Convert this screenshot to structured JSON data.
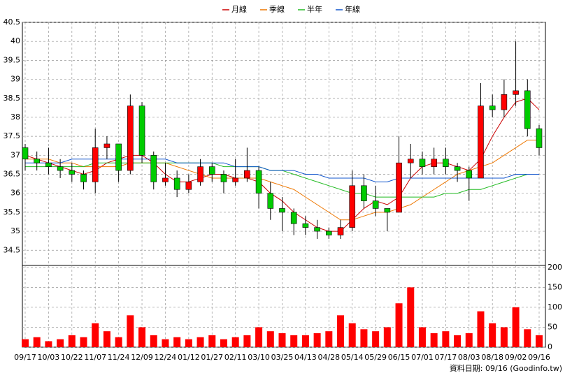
{
  "chart_data": {
    "type": "candlestick",
    "categories": [
      "09/17",
      null,
      "10/03",
      null,
      "10/22",
      null,
      "11/07",
      null,
      "11/24",
      null,
      "12/09",
      null,
      "12/24",
      null,
      "01/12",
      null,
      "01/27",
      null,
      "02/11",
      null,
      "03/10",
      null,
      "03/25",
      null,
      "04/13",
      null,
      "04/28",
      null,
      "05/14",
      null,
      "05/29",
      null,
      "06/15",
      null,
      "07/01",
      null,
      "07/17",
      null,
      "08/03",
      null,
      "08/18",
      null,
      "09/02",
      null,
      "09/16"
    ],
    "ohlc": [
      [
        37.2,
        37.3,
        36.6,
        36.9
      ],
      [
        36.9,
        37.1,
        36.6,
        36.8
      ],
      [
        36.8,
        37.2,
        36.5,
        36.7
      ],
      [
        36.7,
        36.9,
        36.4,
        36.6
      ],
      [
        36.6,
        36.8,
        36.3,
        36.5
      ],
      [
        36.5,
        36.6,
        36.1,
        36.3
      ],
      [
        36.3,
        37.7,
        36.0,
        37.2
      ],
      [
        37.2,
        37.5,
        36.9,
        37.3
      ],
      [
        37.3,
        37.3,
        36.3,
        36.6
      ],
      [
        36.6,
        38.6,
        36.5,
        38.3
      ],
      [
        38.3,
        38.4,
        36.8,
        37.0
      ],
      [
        37.0,
        37.1,
        36.1,
        36.3
      ],
      [
        36.3,
        36.8,
        36.2,
        36.4
      ],
      [
        36.4,
        36.6,
        35.9,
        36.1
      ],
      [
        36.1,
        36.5,
        36.0,
        36.3
      ],
      [
        36.3,
        36.9,
        36.2,
        36.7
      ],
      [
        36.7,
        36.8,
        36.3,
        36.5
      ],
      [
        36.5,
        36.6,
        36.0,
        36.3
      ],
      [
        36.3,
        36.9,
        36.2,
        36.4
      ],
      [
        36.4,
        37.2,
        36.3,
        36.6
      ],
      [
        36.6,
        36.7,
        35.6,
        36.0
      ],
      [
        36.0,
        36.3,
        35.3,
        35.6
      ],
      [
        35.6,
        35.9,
        35.0,
        35.5
      ],
      [
        35.5,
        35.6,
        34.9,
        35.2
      ],
      [
        35.2,
        35.4,
        34.9,
        35.1
      ],
      [
        35.1,
        35.3,
        34.8,
        35.0
      ],
      [
        35.0,
        35.1,
        34.8,
        34.9
      ],
      [
        34.9,
        35.3,
        34.8,
        35.1
      ],
      [
        35.1,
        36.6,
        35.0,
        36.2
      ],
      [
        36.2,
        36.5,
        35.6,
        35.8
      ],
      [
        35.8,
        36.2,
        35.4,
        35.6
      ],
      [
        35.6,
        35.6,
        35.0,
        35.5
      ],
      [
        35.5,
        37.5,
        35.5,
        36.8
      ],
      [
        36.8,
        37.3,
        36.4,
        36.9
      ],
      [
        36.9,
        37.1,
        36.5,
        36.7
      ],
      [
        36.7,
        37.2,
        36.5,
        36.9
      ],
      [
        36.9,
        37.2,
        36.5,
        36.7
      ],
      [
        36.7,
        36.8,
        36.3,
        36.6
      ],
      [
        36.6,
        36.7,
        35.8,
        36.4
      ],
      [
        36.4,
        38.9,
        36.4,
        38.3
      ],
      [
        38.3,
        38.6,
        38.0,
        38.2
      ],
      [
        38.2,
        39.0,
        38.0,
        38.6
      ],
      [
        38.6,
        40.0,
        38.3,
        38.7
      ],
      [
        38.7,
        39.0,
        37.5,
        37.7
      ],
      [
        37.7,
        37.8,
        37.0,
        37.2
      ]
    ],
    "volume": [
      20,
      25,
      15,
      20,
      30,
      25,
      60,
      40,
      25,
      80,
      50,
      30,
      20,
      25,
      20,
      25,
      30,
      20,
      25,
      30,
      50,
      40,
      35,
      30,
      30,
      35,
      40,
      80,
      60,
      45,
      40,
      50,
      110,
      150,
      50,
      35,
      40,
      30,
      35,
      90,
      60,
      50,
      100,
      45,
      30
    ],
    "up_color": "#ff0000",
    "down_color": "#00cc00",
    "volume_color": "#ff0000",
    "series": [
      {
        "name": "月線",
        "color": "#cc0000",
        "values": [
          37.0,
          36.9,
          36.8,
          36.7,
          36.6,
          36.5,
          36.6,
          36.8,
          36.9,
          37.0,
          37.0,
          36.8,
          36.5,
          36.3,
          36.3,
          36.4,
          36.5,
          36.5,
          36.4,
          36.4,
          36.3,
          36.0,
          35.8,
          35.5,
          35.3,
          35.1,
          35.0,
          35.0,
          35.3,
          35.6,
          35.8,
          35.7,
          35.9,
          36.4,
          36.7,
          36.8,
          36.8,
          36.7,
          36.6,
          36.9,
          37.5,
          38.0,
          38.4,
          38.5,
          38.2
        ]
      },
      {
        "name": "季線",
        "color": "#ee7700",
        "values": [
          36.9,
          36.9,
          36.9,
          36.8,
          36.8,
          36.7,
          36.7,
          36.7,
          36.7,
          36.8,
          36.8,
          36.8,
          36.8,
          36.7,
          36.6,
          36.5,
          36.4,
          36.4,
          36.4,
          36.4,
          36.4,
          36.3,
          36.2,
          36.1,
          35.9,
          35.7,
          35.5,
          35.3,
          35.3,
          35.4,
          35.5,
          35.5,
          35.6,
          35.7,
          35.9,
          36.1,
          36.3,
          36.5,
          36.6,
          36.7,
          36.8,
          37.0,
          37.2,
          37.4,
          37.4
        ]
      },
      {
        "name": "半年",
        "color": "#22bb22",
        "values": [
          36.7,
          36.7,
          36.7,
          36.7,
          36.7,
          36.7,
          36.8,
          36.8,
          36.8,
          36.8,
          36.8,
          36.8,
          36.8,
          36.8,
          36.8,
          36.8,
          36.8,
          36.7,
          36.7,
          36.7,
          36.7,
          36.6,
          36.6,
          36.5,
          36.4,
          36.3,
          36.2,
          36.1,
          36.0,
          36.0,
          35.9,
          35.9,
          35.9,
          35.9,
          35.9,
          35.9,
          36.0,
          36.0,
          36.1,
          36.1,
          36.2,
          36.3,
          36.4,
          36.5,
          36.5
        ]
      },
      {
        "name": "年線",
        "color": "#1155cc",
        "values": [
          36.8,
          36.8,
          36.8,
          36.8,
          36.9,
          36.9,
          36.9,
          36.9,
          36.9,
          36.9,
          36.9,
          36.9,
          36.9,
          36.8,
          36.8,
          36.8,
          36.8,
          36.8,
          36.7,
          36.7,
          36.7,
          36.6,
          36.6,
          36.6,
          36.5,
          36.5,
          36.4,
          36.4,
          36.4,
          36.4,
          36.3,
          36.3,
          36.4,
          36.4,
          36.4,
          36.4,
          36.4,
          36.4,
          36.4,
          36.4,
          36.4,
          36.4,
          36.5,
          36.5,
          36.5
        ]
      }
    ],
    "ylim": [
      34.1,
      40.5
    ],
    "yticks": [
      34.5,
      35,
      35.5,
      36,
      36.5,
      37,
      37.5,
      38,
      38.5,
      39,
      39.5,
      40,
      40.5
    ],
    "y2lim": [
      0,
      205
    ],
    "y2ticks": [
      0,
      50,
      100,
      150,
      200
    ],
    "grid": true,
    "footer": "資料日期: 09/16 (Goodinfo.tw)"
  }
}
